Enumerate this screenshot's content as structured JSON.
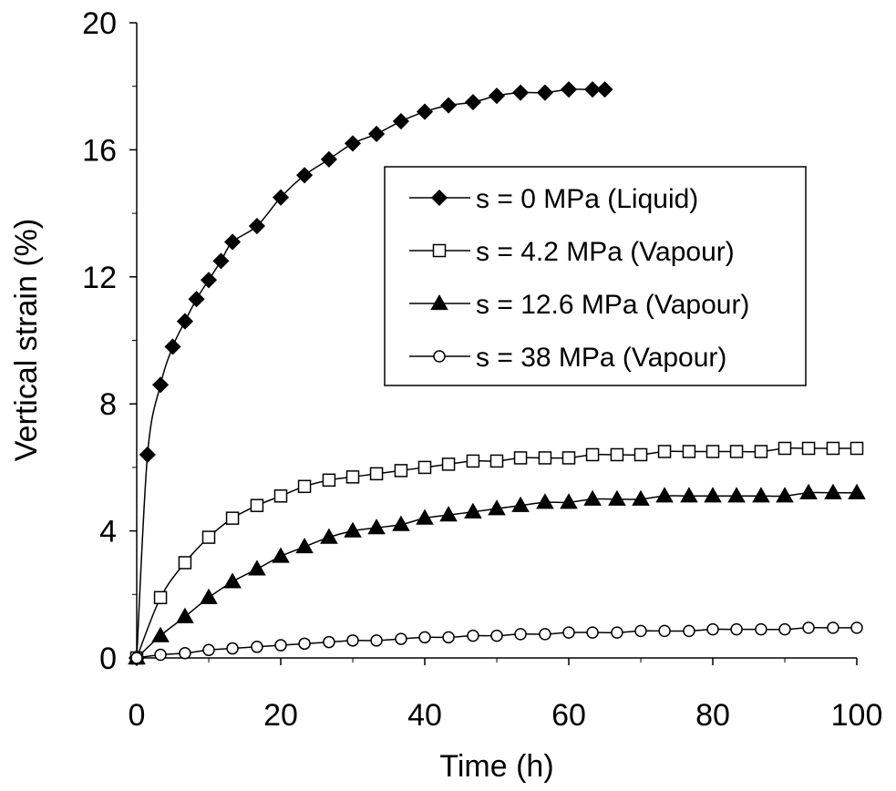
{
  "chart_data": {
    "type": "line",
    "xlabel": "Time (h)",
    "ylabel": "Vertical strain (%)",
    "xlim": [
      0,
      100
    ],
    "ylim": [
      0,
      20
    ],
    "x_ticks": [
      "0",
      "20",
      "40",
      "60",
      "80",
      "100"
    ],
    "y_ticks": [
      "0",
      "4",
      "8",
      "12",
      "16",
      "20"
    ],
    "grid": false,
    "legend_position": "right",
    "series": [
      {
        "name": "s = 0 MPa (Liquid)",
        "marker": "filled-diamond",
        "x": [
          0,
          1.5,
          3.3,
          5,
          6.7,
          8.3,
          10,
          11.7,
          13.3,
          16.7,
          20,
          23.3,
          26.7,
          30,
          33.3,
          36.7,
          40,
          43.3,
          46.7,
          50,
          53.3,
          56.7,
          60,
          63.3,
          65
        ],
        "y": [
          0,
          6.4,
          8.6,
          9.8,
          10.6,
          11.3,
          11.9,
          12.5,
          13.1,
          13.6,
          14.5,
          15.2,
          15.7,
          16.2,
          16.5,
          16.9,
          17.2,
          17.4,
          17.5,
          17.7,
          17.8,
          17.8,
          17.9,
          17.9,
          17.9
        ]
      },
      {
        "name": "s = 4.2 MPa (Vapour)",
        "marker": "open-square",
        "x": [
          0,
          3.3,
          6.7,
          10,
          13.3,
          16.7,
          20,
          23.3,
          26.7,
          30,
          33.3,
          36.7,
          40,
          43.3,
          46.7,
          50,
          53.3,
          56.7,
          60,
          63.3,
          66.7,
          70,
          73.3,
          76.7,
          80,
          83.3,
          86.7,
          90,
          93.3,
          96.7,
          100
        ],
        "y": [
          0,
          1.9,
          3.0,
          3.8,
          4.4,
          4.8,
          5.1,
          5.4,
          5.6,
          5.7,
          5.8,
          5.9,
          6.0,
          6.1,
          6.2,
          6.2,
          6.3,
          6.3,
          6.3,
          6.4,
          6.4,
          6.4,
          6.5,
          6.5,
          6.5,
          6.5,
          6.5,
          6.6,
          6.6,
          6.6,
          6.6
        ]
      },
      {
        "name": "s = 12.6 MPa (Vapour)",
        "marker": "filled-triangle",
        "x": [
          0,
          3.3,
          6.7,
          10,
          13.3,
          16.7,
          20,
          23.3,
          26.7,
          30,
          33.3,
          36.7,
          40,
          43.3,
          46.7,
          50,
          53.3,
          56.7,
          60,
          63.3,
          66.7,
          70,
          73.3,
          76.7,
          80,
          83.3,
          86.7,
          90,
          93.3,
          96.7,
          100
        ],
        "y": [
          0,
          0.7,
          1.3,
          1.9,
          2.4,
          2.8,
          3.2,
          3.5,
          3.8,
          4.0,
          4.1,
          4.2,
          4.4,
          4.5,
          4.6,
          4.7,
          4.8,
          4.9,
          4.9,
          5.0,
          5.0,
          5.0,
          5.1,
          5.1,
          5.1,
          5.1,
          5.1,
          5.1,
          5.2,
          5.2,
          5.2
        ]
      },
      {
        "name": "s = 38 MPa (Vapour)",
        "marker": "open-circle",
        "x": [
          0,
          3.3,
          6.7,
          10,
          13.3,
          16.7,
          20,
          23.3,
          26.7,
          30,
          33.3,
          36.7,
          40,
          43.3,
          46.7,
          50,
          53.3,
          56.7,
          60,
          63.3,
          66.7,
          70,
          73.3,
          76.7,
          80,
          83.3,
          86.7,
          90,
          93.3,
          96.7,
          100
        ],
        "y": [
          0,
          0.1,
          0.15,
          0.25,
          0.3,
          0.35,
          0.4,
          0.45,
          0.5,
          0.55,
          0.55,
          0.6,
          0.65,
          0.65,
          0.7,
          0.7,
          0.75,
          0.75,
          0.8,
          0.8,
          0.8,
          0.85,
          0.85,
          0.85,
          0.9,
          0.9,
          0.9,
          0.9,
          0.95,
          0.95,
          0.95
        ]
      }
    ]
  }
}
